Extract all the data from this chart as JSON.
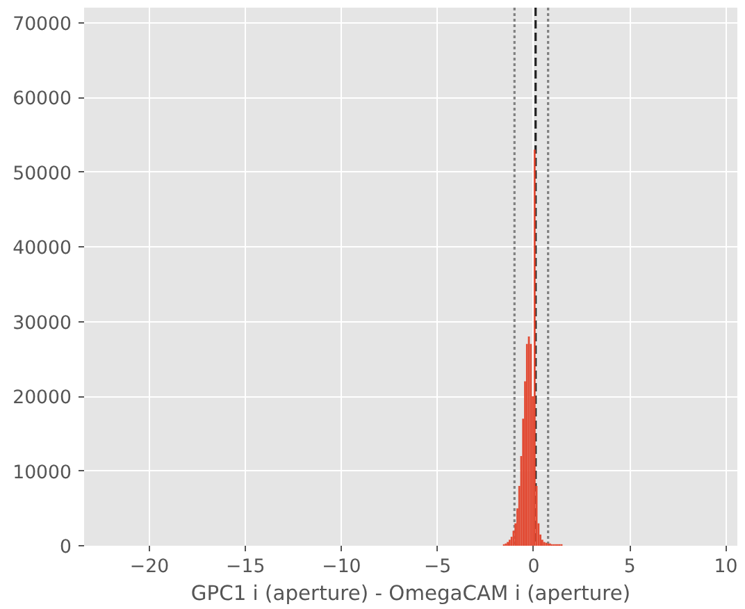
{
  "chart_data": {
    "type": "histogram",
    "xlabel": "GPC1 i (aperture) - OmegaCAM i (aperture)",
    "color": "#e24a33",
    "bins": [
      -1.6,
      -1.5,
      -1.4,
      -1.3,
      -1.2,
      -1.1,
      -1.0,
      -0.9,
      -0.8,
      -0.7,
      -0.6,
      -0.5,
      -0.4,
      -0.3,
      -0.2,
      -0.1,
      0.0,
      0.1,
      0.2,
      0.3,
      0.4,
      0.5,
      0.6,
      0.7,
      0.8,
      0.9,
      1.0,
      1.1,
      1.2,
      1.3,
      1.4,
      1.5
    ],
    "values": [
      200,
      300,
      500,
      800,
      1200,
      2000,
      3000,
      5000,
      8000,
      12000,
      17000,
      22000,
      27000,
      28000,
      27000,
      20000,
      53000,
      8000,
      3000,
      1500,
      800,
      500,
      400,
      300,
      300,
      200,
      200,
      200,
      200,
      200,
      200
    ],
    "xlim": [
      -23.4,
      10.6
    ],
    "ylim": [
      0,
      72000
    ],
    "xticks": [
      {
        "value": -20,
        "label": "−20"
      },
      {
        "value": -15,
        "label": "−15"
      },
      {
        "value": -10,
        "label": "−10"
      },
      {
        "value": -5,
        "label": "−5"
      },
      0,
      5,
      10
    ],
    "yticks": [
      0,
      10000,
      20000,
      30000,
      40000,
      50000,
      60000,
      70000
    ],
    "grid": true,
    "ref_lines": [
      {
        "axis": "x",
        "value": 0.1,
        "color": "#222222",
        "line_style": "dashed"
      },
      {
        "axis": "x",
        "value": -1.0,
        "color": "#808080",
        "line_style": "dotted"
      },
      {
        "axis": "x",
        "value": 0.75,
        "color": "#808080",
        "line_style": "dotted"
      }
    ]
  }
}
